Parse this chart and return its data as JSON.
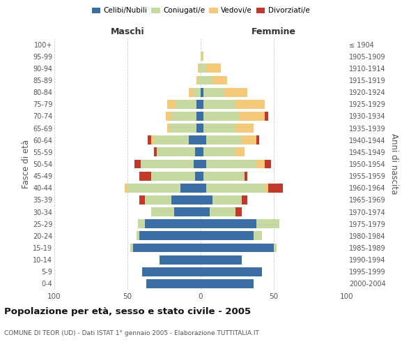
{
  "age_groups": [
    "0-4",
    "5-9",
    "10-14",
    "15-19",
    "20-24",
    "25-29",
    "30-34",
    "35-39",
    "40-44",
    "45-49",
    "50-54",
    "55-59",
    "60-64",
    "65-69",
    "70-74",
    "75-79",
    "80-84",
    "85-89",
    "90-94",
    "95-99",
    "100+"
  ],
  "birth_years": [
    "2000-2004",
    "1995-1999",
    "1990-1994",
    "1985-1989",
    "1980-1984",
    "1975-1979",
    "1970-1974",
    "1965-1969",
    "1960-1964",
    "1955-1959",
    "1950-1954",
    "1945-1949",
    "1940-1944",
    "1935-1939",
    "1930-1934",
    "1925-1929",
    "1920-1924",
    "1915-1919",
    "1910-1914",
    "1905-1909",
    "≤ 1904"
  ],
  "maschi": {
    "celibi": [
      37,
      40,
      28,
      46,
      42,
      38,
      18,
      20,
      14,
      4,
      5,
      4,
      8,
      3,
      3,
      3,
      0,
      0,
      0,
      0,
      0
    ],
    "coniugati": [
      0,
      0,
      0,
      2,
      2,
      5,
      16,
      18,
      36,
      30,
      36,
      26,
      24,
      18,
      17,
      14,
      5,
      2,
      1,
      0,
      0
    ],
    "vedovi": [
      0,
      0,
      0,
      0,
      0,
      0,
      0,
      0,
      2,
      0,
      0,
      0,
      2,
      2,
      4,
      6,
      3,
      1,
      1,
      0,
      0
    ],
    "divorziati": [
      0,
      0,
      0,
      0,
      0,
      0,
      0,
      4,
      0,
      8,
      4,
      2,
      2,
      0,
      0,
      0,
      0,
      0,
      0,
      0,
      0
    ]
  },
  "femmine": {
    "nubili": [
      36,
      42,
      28,
      50,
      36,
      38,
      6,
      8,
      4,
      2,
      4,
      2,
      4,
      2,
      2,
      2,
      2,
      0,
      0,
      0,
      0
    ],
    "coniugate": [
      0,
      0,
      0,
      2,
      6,
      16,
      18,
      20,
      40,
      28,
      34,
      22,
      24,
      22,
      24,
      22,
      14,
      8,
      4,
      1,
      0
    ],
    "vedove": [
      0,
      0,
      0,
      0,
      0,
      0,
      0,
      0,
      2,
      0,
      6,
      6,
      10,
      12,
      18,
      20,
      16,
      10,
      10,
      1,
      0
    ],
    "divorziate": [
      0,
      0,
      0,
      0,
      0,
      0,
      4,
      4,
      10,
      2,
      4,
      0,
      2,
      0,
      2,
      0,
      0,
      0,
      0,
      0,
      0
    ]
  },
  "colors": {
    "celibi": "#3a6ea5",
    "coniugati": "#c5d9a0",
    "vedovi": "#f5c97a",
    "divorziati": "#c0392b"
  },
  "xlim": 100,
  "title": "Popolazione per età, sesso e stato civile - 2005",
  "subtitle": "COMUNE DI TEOR (UD) - Dati ISTAT 1° gennaio 2005 - Elaborazione TUTTITALIA.IT",
  "ylabel_left": "Fasce di età",
  "ylabel_right": "Anni di nascita",
  "xlabel_maschi": "Maschi",
  "xlabel_femmine": "Femmine",
  "legend_labels": [
    "Celibi/Nubili",
    "Coniugati/e",
    "Vedovi/e",
    "Divorziati/e"
  ]
}
